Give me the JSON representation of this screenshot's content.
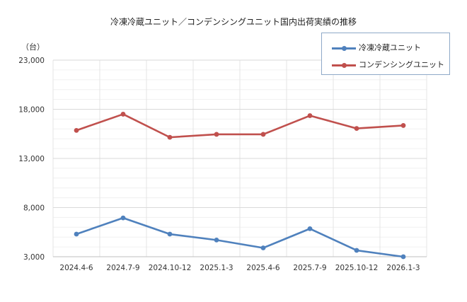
{
  "chart_data": {
    "type": "line",
    "title": "冷凍冷蔵ユニット／コンデンシングユニット国内出荷実績の推移",
    "y_unit": "（台）",
    "categories": [
      "2024.4-6",
      "2024.7-9",
      "2024.10-12",
      "2025.1-3",
      "2025.4-6",
      "2025.7-9",
      "2025.10-12",
      "2026.1-3"
    ],
    "y_ticks": [
      "3,000",
      "8,000",
      "13,000",
      "18,000",
      "23,000"
    ],
    "ylim": [
      3000,
      23000
    ],
    "grid": true,
    "legend_position": "top-right",
    "series": [
      {
        "name": "冷凍冷蔵ユニット",
        "color": "#4f81bd",
        "values": [
          5300,
          6950,
          5300,
          4700,
          3900,
          5850,
          3650,
          3000
        ]
      },
      {
        "name": "コンデンシングユニット",
        "color": "#c0504d",
        "values": [
          15850,
          17500,
          15150,
          15450,
          15450,
          17350,
          16050,
          16350
        ]
      }
    ]
  }
}
